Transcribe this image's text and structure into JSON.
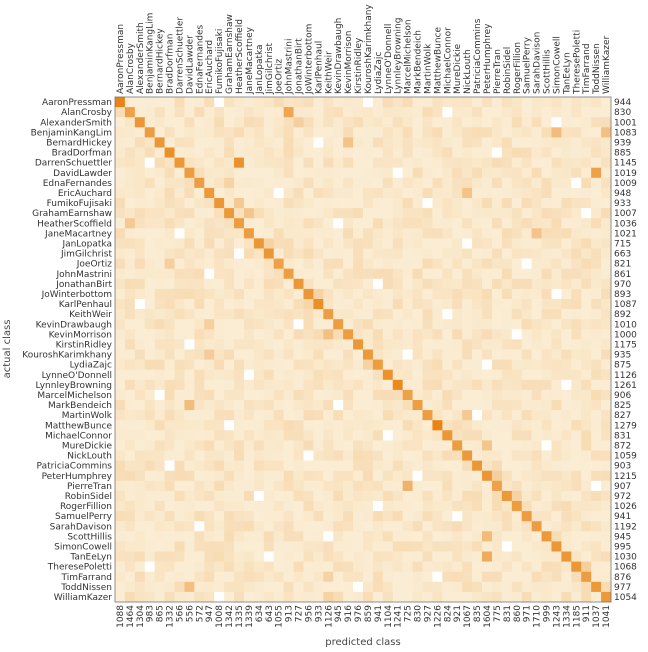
{
  "chart_data": {
    "type": "heatmap",
    "title": "",
    "xlabel": "predicted class",
    "ylabel": "actual class",
    "classes": [
      "AaronPressman",
      "AlanCrosby",
      "AlexanderSmith",
      "BenjaminKangLim",
      "BernardHickey",
      "BradDorfman",
      "DarrenSchuettler",
      "DavidLawder",
      "EdnaFernandes",
      "EricAuchard",
      "FumikoFujisaki",
      "GrahamEarnshaw",
      "HeatherScoffield",
      "JaneMacartney",
      "JanLopatka",
      "JimGilchrist",
      "JoeOrtiz",
      "JohnMastrini",
      "JonathanBirt",
      "JoWinterbottom",
      "KarlPenhaul",
      "KeithWeir",
      "KevinDrawbaugh",
      "KevinMorrison",
      "KirstinRidley",
      "KouroshKarimkhany",
      "LydiaZajc",
      "LynneO'Donnell",
      "LynnleyBrowning",
      "MarcelMichelson",
      "MarkBendeich",
      "MartinWolk",
      "MatthewBunce",
      "MichaelConnor",
      "MureDickie",
      "NickLouth",
      "PatriciaCommins",
      "PeterHumphrey",
      "PierreTran",
      "RobinSidel",
      "RogerFillion",
      "SamuelPerry",
      "SarahDavison",
      "ScottHillis",
      "SimonCowell",
      "TanEeLyn",
      "TheresePoletti",
      "TimFarrand",
      "ToddNissen",
      "WilliamKazer"
    ],
    "row_totals": [
      944,
      830,
      1001,
      1083,
      939,
      885,
      1145,
      1019,
      1009,
      948,
      933,
      1007,
      1036,
      1021,
      715,
      663,
      821,
      861,
      970,
      893,
      1087,
      892,
      1010,
      1000,
      1175,
      935,
      875,
      1126,
      1261,
      906,
      825,
      827,
      1279,
      831,
      872,
      1059,
      903,
      1215,
      907,
      972,
      1026,
      941,
      1192,
      945,
      995,
      1030,
      1068,
      876,
      977,
      1054
    ],
    "column_totals": [
      1088,
      1464,
      1304,
      983,
      865,
      1332,
      566,
      556,
      572,
      947,
      1008,
      1342,
      1335,
      1339,
      634,
      643,
      1055,
      913,
      727,
      956,
      933,
      1126,
      945,
      916,
      976,
      859,
      941,
      1104,
      1241,
      725,
      830,
      927,
      1226,
      824,
      921,
      1067,
      835,
      1604,
      775,
      831,
      860,
      971,
      1710,
      999,
      1243,
      1334,
      1185,
      911,
      1037,
      1041
    ],
    "max_cell": 200,
    "cells": [
      [
        0,
        0,
        190
      ],
      [
        1,
        1,
        130
      ],
      [
        2,
        2,
        150
      ],
      [
        3,
        3,
        140
      ],
      [
        4,
        4,
        150
      ],
      [
        5,
        5,
        165
      ],
      [
        6,
        6,
        150
      ],
      [
        7,
        7,
        140
      ],
      [
        8,
        8,
        135
      ],
      [
        9,
        9,
        145
      ],
      [
        10,
        10,
        150
      ],
      [
        11,
        11,
        145
      ],
      [
        12,
        12,
        140
      ],
      [
        13,
        13,
        140
      ],
      [
        14,
        14,
        150
      ],
      [
        15,
        15,
        150
      ],
      [
        16,
        16,
        130
      ],
      [
        17,
        17,
        135
      ],
      [
        18,
        18,
        150
      ],
      [
        19,
        19,
        150
      ],
      [
        20,
        20,
        165
      ],
      [
        21,
        21,
        135
      ],
      [
        22,
        22,
        140
      ],
      [
        23,
        23,
        140
      ],
      [
        24,
        24,
        150
      ],
      [
        25,
        25,
        145
      ],
      [
        26,
        26,
        140
      ],
      [
        27,
        27,
        160
      ],
      [
        28,
        28,
        180
      ],
      [
        29,
        29,
        130
      ],
      [
        30,
        30,
        135
      ],
      [
        31,
        31,
        140
      ],
      [
        32,
        32,
        190
      ],
      [
        33,
        33,
        150
      ],
      [
        34,
        34,
        140
      ],
      [
        35,
        35,
        145
      ],
      [
        36,
        36,
        150
      ],
      [
        37,
        37,
        150
      ],
      [
        38,
        38,
        130
      ],
      [
        39,
        39,
        145
      ],
      [
        40,
        40,
        140
      ],
      [
        41,
        41,
        140
      ],
      [
        42,
        42,
        140
      ],
      [
        43,
        43,
        145
      ],
      [
        44,
        44,
        150
      ],
      [
        45,
        45,
        150
      ],
      [
        46,
        46,
        150
      ],
      [
        47,
        47,
        140
      ],
      [
        48,
        48,
        145
      ],
      [
        49,
        49,
        145
      ],
      [
        6,
        12,
        160
      ],
      [
        7,
        48,
        130
      ],
      [
        1,
        17,
        120
      ],
      [
        3,
        44,
        75
      ],
      [
        3,
        49,
        70
      ],
      [
        38,
        29,
        95
      ],
      [
        43,
        37,
        80
      ],
      [
        45,
        37,
        110
      ],
      [
        34,
        37,
        60
      ],
      [
        12,
        1,
        55
      ],
      [
        13,
        42,
        65
      ],
      [
        11,
        13,
        60
      ],
      [
        23,
        21,
        70
      ],
      [
        30,
        7,
        75
      ],
      [
        9,
        35,
        65
      ],
      [
        4,
        23,
        65
      ],
      [
        10,
        12,
        55
      ],
      [
        31,
        35,
        55
      ],
      [
        48,
        7,
        70
      ],
      [
        2,
        18,
        45
      ],
      [
        22,
        9,
        45
      ],
      [
        25,
        9,
        50
      ],
      [
        46,
        47,
        45
      ],
      [
        49,
        21,
        40
      ],
      [
        47,
        21,
        40
      ],
      [
        39,
        40,
        40
      ],
      [
        37,
        38,
        45
      ],
      [
        8,
        11,
        40
      ],
      [
        14,
        15,
        40
      ],
      [
        16,
        5,
        45
      ],
      [
        19,
        20,
        40
      ],
      [
        26,
        25,
        40
      ],
      [
        20,
        19,
        35
      ]
    ],
    "low_cells": [
      [
        0,
        10
      ],
      [
        0,
        25
      ],
      [
        1,
        33
      ],
      [
        2,
        44
      ],
      [
        4,
        20
      ],
      [
        5,
        38
      ],
      [
        6,
        3
      ],
      [
        7,
        28
      ],
      [
        8,
        46
      ],
      [
        9,
        16
      ],
      [
        10,
        31
      ],
      [
        11,
        47
      ],
      [
        12,
        22
      ],
      [
        13,
        6
      ],
      [
        14,
        35
      ],
      [
        15,
        12
      ],
      [
        16,
        41
      ],
      [
        17,
        9
      ],
      [
        18,
        26
      ],
      [
        19,
        44
      ],
      [
        20,
        2
      ],
      [
        21,
        33
      ],
      [
        22,
        18
      ],
      [
        23,
        40
      ],
      [
        24,
        7
      ],
      [
        25,
        29
      ],
      [
        26,
        37
      ],
      [
        27,
        13
      ],
      [
        28,
        45
      ],
      [
        29,
        4
      ],
      [
        30,
        22
      ],
      [
        31,
        36
      ],
      [
        32,
        11
      ],
      [
        33,
        27
      ],
      [
        34,
        43
      ],
      [
        35,
        19
      ],
      [
        36,
        5
      ],
      [
        37,
        30
      ],
      [
        38,
        48
      ],
      [
        39,
        14
      ],
      [
        40,
        26
      ],
      [
        41,
        34
      ],
      [
        42,
        8
      ],
      [
        43,
        21
      ],
      [
        44,
        39
      ],
      [
        45,
        15
      ],
      [
        46,
        3
      ],
      [
        47,
        32
      ],
      [
        48,
        24
      ],
      [
        49,
        10
      ]
    ]
  }
}
